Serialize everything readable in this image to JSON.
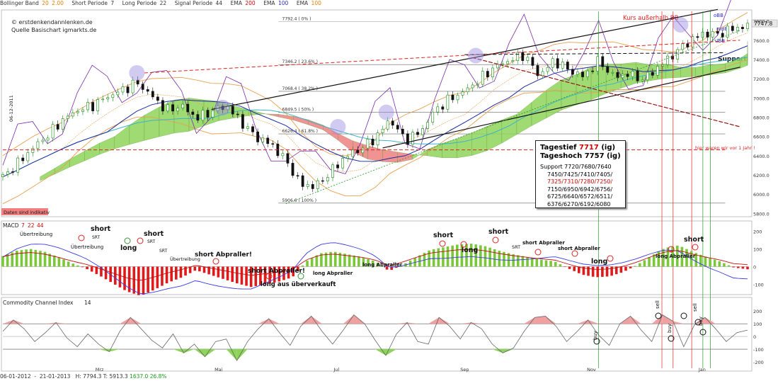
{
  "header": {
    "bb_label": "Bollinger Band",
    "bb_v1": "20",
    "bb_v2": "2.00",
    "short_label": "Short Periode",
    "short_v": "7",
    "long_label": "Long Periode",
    "long_v": "22",
    "signal_label": "Signal Periode",
    "signal_v": "44",
    "ema1_label": "EMA",
    "ema1_v": "200",
    "ema2_label": "EMA",
    "ema2_v": "100",
    "ema3_label": "EMA",
    "ema3_v": "100"
  },
  "watermark": {
    "line1": "© erstdenkendannlenken.de",
    "line2": "Quelle Basischart igmarkts.de"
  },
  "chart_data": [
    {
      "type": "line",
      "panel": "price",
      "ylim": [
        5780,
        7900
      ],
      "y_ticks": [
        5800,
        6000,
        6200,
        6400,
        6600,
        6800,
        7000,
        7200,
        7400,
        7600,
        7800
      ],
      "y_tick_labels": [
        "5800.0",
        "6000.0",
        "6200.0",
        "6400.0",
        "6600.0",
        "6800.0",
        "7000.0",
        "7200.0",
        "7400.0",
        "7600.0",
        "7800.0"
      ],
      "x_labels": [
        "Mrz",
        "Mai",
        "Jul",
        "Sep",
        "Nov",
        "Jan"
      ],
      "x_label_pos": [
        0.13,
        0.29,
        0.45,
        0.62,
        0.79,
        0.94
      ],
      "x": [
        0,
        0.02,
        0.04,
        0.06,
        0.08,
        0.1,
        0.12,
        0.14,
        0.16,
        0.18,
        0.2,
        0.22,
        0.24,
        0.26,
        0.28,
        0.3,
        0.32,
        0.34,
        0.36,
        0.38,
        0.4,
        0.42,
        0.44,
        0.46,
        0.48,
        0.5,
        0.52,
        0.54,
        0.56,
        0.58,
        0.6,
        0.62,
        0.64,
        0.66,
        0.68,
        0.7,
        0.72,
        0.74,
        0.76,
        0.78,
        0.8,
        0.82,
        0.84,
        0.86,
        0.88,
        0.9,
        0.92,
        0.94,
        0.96,
        0.98,
        1
      ],
      "close": [
        6180,
        6320,
        6480,
        6610,
        6770,
        6870,
        6920,
        7010,
        7080,
        7160,
        7020,
        6870,
        6920,
        6790,
        6860,
        6920,
        6750,
        6590,
        6520,
        6350,
        6100,
        6080,
        6230,
        6390,
        6470,
        6580,
        6780,
        6560,
        6640,
        6870,
        6990,
        7070,
        7190,
        7320,
        7390,
        7450,
        7230,
        7390,
        7290,
        7220,
        7390,
        7220,
        7250,
        7190,
        7320,
        7450,
        7580,
        7670,
        7660,
        7720,
        7747
      ],
      "series": [
        {
          "name": "Bollinger Band",
          "type": "band"
        },
        {
          "name": "EMA 200"
        },
        {
          "name": "EMA 100"
        },
        {
          "name": "Ichimoku"
        }
      ],
      "fib_levels": [
        {
          "label": "7792.4 ( 0% )",
          "value": 7792.4
        },
        {
          "label": "7346.2 ( 23.6% )",
          "value": 7346.2
        },
        {
          "label": "7068.4 ( 38.2% )",
          "value": 7068.4
        },
        {
          "label": "6849.5 ( 50% )",
          "value": 6849.5
        },
        {
          "label": "6626.4 ( 61.8% )",
          "value": 6626.4
        },
        {
          "label": "5906.6 ( 100% )",
          "value": 5906.6
        }
      ],
      "last_price": "7747.8",
      "annotations": [
        "Kurs außerhalb BB",
        "oBB",
        "mBB",
        "uBB",
        "Support",
        "hier waren wir vor 1 Jahr !",
        "Daten sind indikativ",
        "06-12-2011"
      ]
    },
    {
      "type": "bar",
      "panel": "MACD",
      "title": "MACD",
      "params": [
        "7",
        "22",
        "44"
      ],
      "ylim": [
        -150,
        210
      ],
      "y_ticks": [
        200,
        100,
        0,
        -100
      ],
      "y_tick_labels": [
        "200",
        "100",
        "0",
        "-100"
      ],
      "values": [
        60,
        90,
        100,
        85,
        55,
        20,
        -10,
        -50,
        -95,
        -140,
        -165,
        -130,
        -90,
        -60,
        -20,
        -45,
        -70,
        -95,
        -115,
        -100,
        -85,
        -60,
        30,
        75,
        85,
        70,
        55,
        30,
        -25,
        10,
        55,
        95,
        110,
        125,
        130,
        115,
        90,
        70,
        55,
        40,
        30,
        -10,
        -45,
        -60,
        -55,
        -30,
        10,
        60,
        105,
        120,
        85,
        55,
        30,
        -5,
        -15
      ],
      "annotations": [
        "Übertreibung",
        "Übertreibung",
        "Übertreibung",
        "short",
        "SRT",
        "long",
        "short",
        "SRT",
        "SRT",
        "short Abpraller!",
        "short Abpraller!",
        "long aus überverkauft",
        "long Abpraller",
        "long Abpraller",
        "short",
        "long",
        "short",
        "SRT",
        "short Abpraller",
        "short Abpraller",
        "long",
        "long Abpraller",
        "short"
      ]
    },
    {
      "type": "area",
      "panel": "CCI",
      "title": "Commodity Channel Index",
      "params": [
        "14"
      ],
      "ylim": [
        -250,
        240
      ],
      "y_ticks": [
        200,
        100,
        0,
        -100,
        -200
      ],
      "y_tick_labels": [
        "200",
        "100",
        "0",
        "-100",
        "-200"
      ],
      "values": [
        40,
        130,
        60,
        -40,
        30,
        110,
        -10,
        -80,
        20,
        -60,
        -120,
        40,
        150,
        60,
        -30,
        -90,
        20,
        -130,
        -60,
        -160,
        -40,
        -20,
        -190,
        -40,
        60,
        140,
        30,
        -70,
        80,
        160,
        40,
        -60,
        50,
        170,
        100,
        -30,
        -150,
        20,
        110,
        -40,
        -60,
        150,
        80,
        -20,
        110,
        60,
        -60,
        -130,
        -90,
        40,
        150,
        160,
        80,
        -40,
        40,
        130,
        10,
        -70,
        100,
        160,
        50,
        -40,
        170,
        120,
        -80,
        90,
        150,
        60,
        -40,
        30,
        50
      ],
      "annotations": [
        "buy",
        "sell",
        "buy",
        "sell",
        "buy"
      ]
    }
  ],
  "infobox": {
    "tief_label": "Tagestief",
    "tief_val": "7717",
    "tief_unit": "(ig)",
    "hoch_label": "Tageshoch 7757 (ig)",
    "support_label": "Support 7720/7680/7640",
    "line2": "7450/7425/7410/7405/",
    "line3": "7325/7310/7280/7250/",
    "line4": "7150/6950/6942/6756/",
    "line5": "6725/6640/6572/6511/",
    "line6": "6376/6270/6192/6080"
  },
  "footer": {
    "date_from": "06-01-2012",
    "date_to": "21-01-2013",
    "stats": "H: 7794.3   T: 5913.3",
    "change": "1637.0",
    "pct": "26.8%"
  },
  "colors": {
    "ichimoku_green": "#8fd45a",
    "ichimoku_red": "#f08080",
    "bb": "#e8a050",
    "ema200": "#3bb3c8",
    "ema100": "#1e2ea0",
    "cci": "#7a2aa8",
    "up": "#1a8a1a",
    "down": "#111111"
  }
}
